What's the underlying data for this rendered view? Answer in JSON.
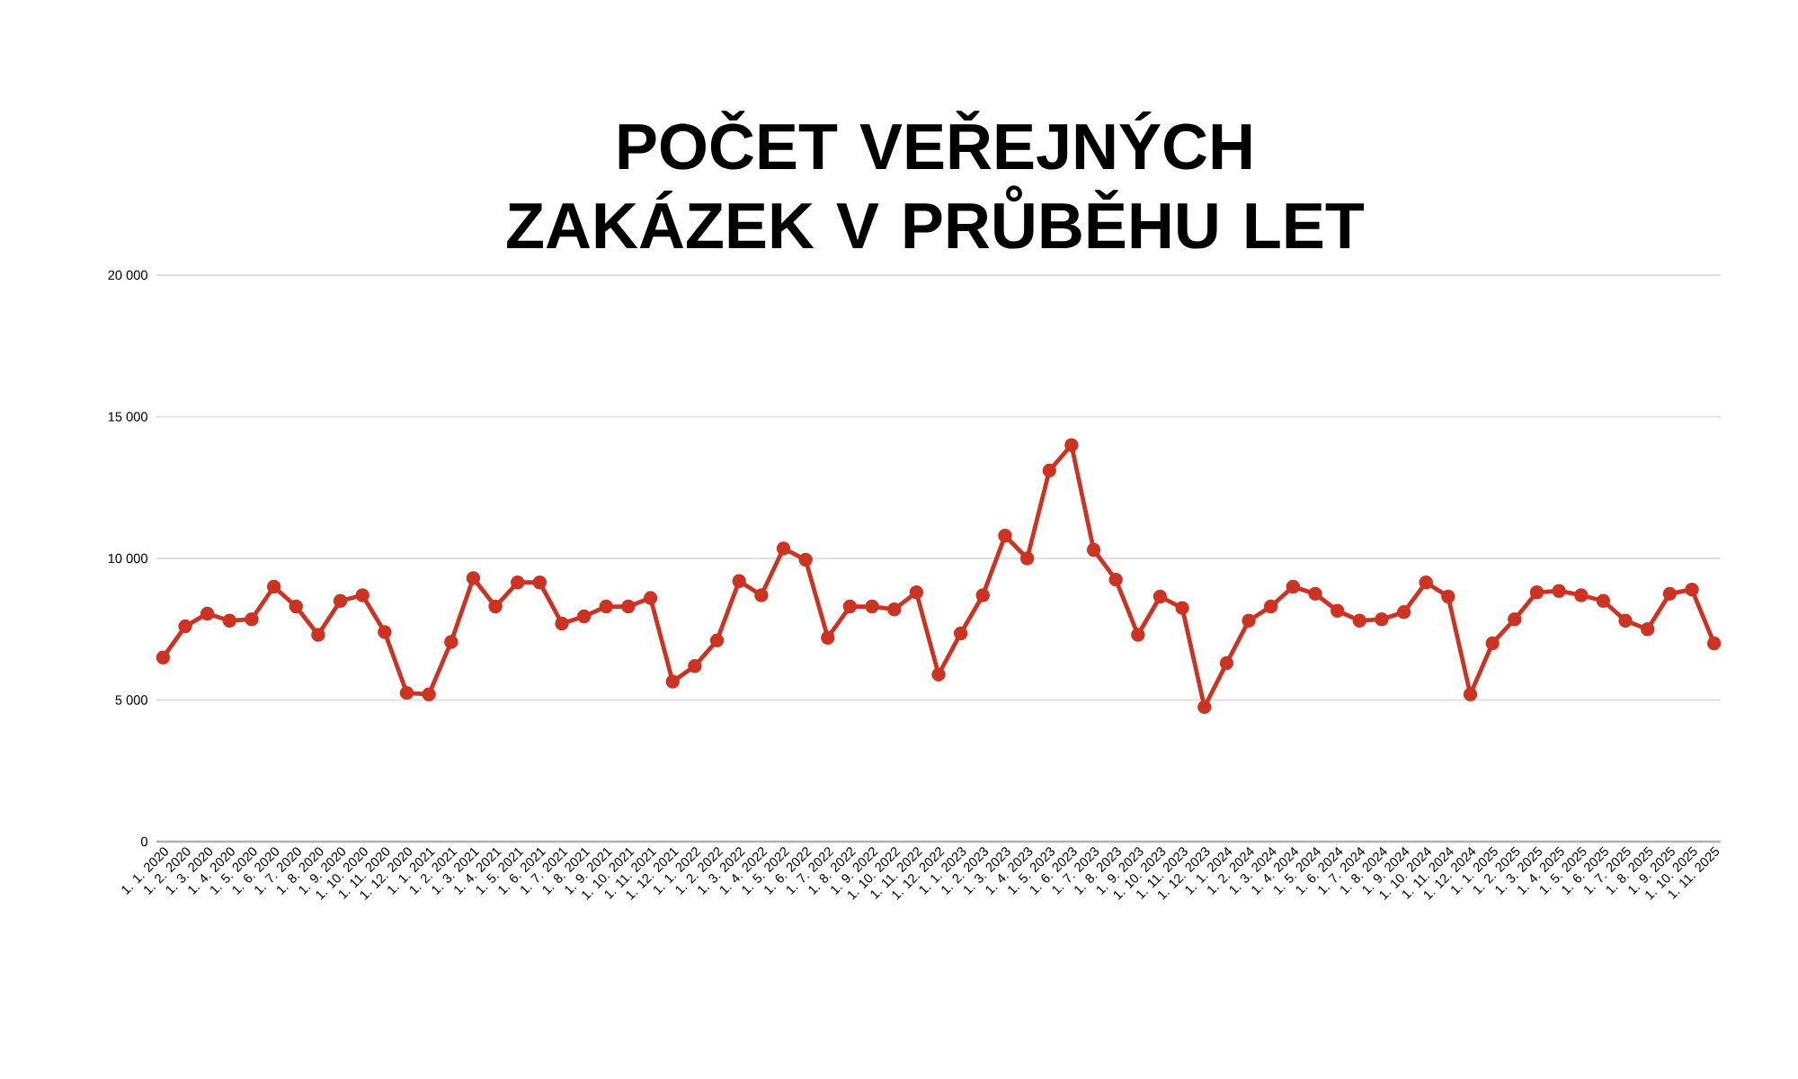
{
  "chart_data": {
    "type": "line",
    "title": "POČET VEŘEJNÝCH ZAKÁZEK V PRŮBĚHU LET",
    "categories": [
      "1. 1. 2020",
      "1. 2. 2020",
      "1. 3. 2020",
      "1. 4. 2020",
      "1. 5. 2020",
      "1. 6. 2020",
      "1. 7. 2020",
      "1. 8. 2020",
      "1. 9. 2020",
      "1. 10. 2020",
      "1. 11. 2020",
      "1. 12. 2020",
      "1. 1. 2021",
      "1. 2. 2021",
      "1. 3. 2021",
      "1. 4. 2021",
      "1. 5. 2021",
      "1. 6. 2021",
      "1. 7. 2021",
      "1. 8. 2021",
      "1. 9. 2021",
      "1. 10. 2021",
      "1. 11. 2021",
      "1. 12. 2021",
      "1. 1. 2022",
      "1. 2. 2022",
      "1. 3. 2022",
      "1. 4. 2022",
      "1. 5. 2022",
      "1. 6. 2022",
      "1. 7. 2022",
      "1. 8. 2022",
      "1. 9. 2022",
      "1. 10. 2022",
      "1. 11. 2022",
      "1. 12. 2022",
      "1. 1. 2023",
      "1. 2. 2023",
      "1. 3. 2023",
      "1. 4. 2023",
      "1. 5. 2023",
      "1. 6. 2023",
      "1. 7. 2023",
      "1. 8. 2023",
      "1. 9. 2023",
      "1. 10. 2023",
      "1. 11. 2023",
      "1. 12. 2023",
      "1. 1. 2024",
      "1. 2. 2024",
      "1. 3. 2024",
      "1. 4. 2024",
      "1. 5. 2024",
      "1. 6. 2024",
      "1. 7. 2024",
      "1. 8. 2024",
      "1. 9. 2024",
      "1. 10. 2024",
      "1. 11. 2024",
      "1. 12. 2024",
      "1. 1. 2025",
      "1. 2. 2025",
      "1. 3. 2025",
      "1. 4. 2025",
      "1. 5. 2025",
      "1. 6. 2025",
      "1. 7. 2025",
      "1. 8. 2025",
      "1. 9. 2025",
      "1. 10. 2025",
      "1. 11. 2025"
    ],
    "series": [
      {
        "color": "#cc3322",
        "values": [
          6500,
          7600,
          8050,
          7800,
          7850,
          9000,
          8300,
          7300,
          8500,
          8700,
          7400,
          5250,
          5200,
          7050,
          9300,
          8300,
          9150,
          9150,
          7700,
          7950,
          8300,
          8300,
          8600,
          5650,
          6200,
          7100,
          9200,
          8700,
          10350,
          9950,
          7200,
          8300,
          8300,
          8200,
          8800,
          5900,
          7350,
          8700,
          10800,
          10000,
          13100,
          14000,
          10300,
          9250,
          7300,
          8650,
          8250,
          4750,
          6300,
          7800,
          8300,
          9000,
          8750,
          8150,
          7800,
          7850,
          8100,
          9150,
          8650,
          5200,
          7000,
          7850,
          8800,
          8850,
          8700,
          8500,
          7800,
          7500,
          8750,
          8900,
          7000
        ]
      }
    ],
    "ylim": [
      0,
      20000
    ],
    "yticks": [
      {
        "value": 0,
        "label": "0"
      },
      {
        "value": 5000,
        "label": "5 000"
      },
      {
        "value": 10000,
        "label": "10 000"
      },
      {
        "value": 15000,
        "label": "15 000"
      },
      {
        "value": 20000,
        "label": "20 000"
      }
    ],
    "grid": "y",
    "marker": "circle",
    "line_style": "solid"
  }
}
